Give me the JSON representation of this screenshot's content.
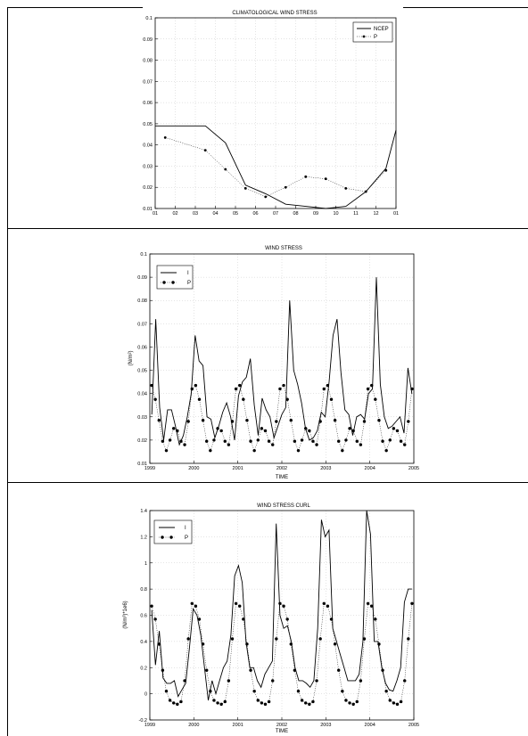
{
  "colors": {
    "line": "#000000",
    "grid": "#c8c8c8",
    "border": "#000000"
  },
  "chart_data": [
    {
      "type": "line",
      "title": "CLIMATOLOGICAL WIND STRESS",
      "xlabel": "",
      "ylabel": "",
      "xticklabels": [
        "01",
        "02",
        "03",
        "04",
        "05",
        "06",
        "07",
        "08",
        "09",
        "10",
        "11",
        "12",
        "01"
      ],
      "yticklabels": [
        "0.01",
        "0.02",
        "0.03",
        "0.04",
        "0.05",
        "0.06",
        "0.07",
        "0.08",
        "0.09",
        "0.1"
      ],
      "xlim": [
        0,
        12
      ],
      "ylim": [
        0.01,
        0.1
      ],
      "grid": true,
      "legend": "top-right",
      "series": [
        {
          "name": "NCEP",
          "style": "solid",
          "x": [
            0,
            1.5,
            2.5,
            3.5,
            4.5,
            5.5,
            6.5,
            7.5,
            8.5,
            9.5,
            10.5,
            11.5,
            12
          ],
          "y": [
            0.049,
            0.049,
            0.049,
            0.041,
            0.021,
            0.017,
            0.012,
            0.011,
            0.01,
            0.011,
            0.018,
            0.029,
            0.047
          ]
        },
        {
          "name": "P",
          "style": "dotted-markers",
          "x": [
            0.5,
            2.5,
            3.5,
            4.5,
            5.5,
            6.5,
            7.5,
            8.5,
            9.5,
            10.5,
            11.5
          ],
          "y": [
            0.0435,
            0.0375,
            0.0285,
            0.0195,
            0.0155,
            0.02,
            0.025,
            0.024,
            0.0195,
            0.018,
            0.028
          ]
        }
      ]
    },
    {
      "type": "line",
      "title": "WIND STRESS",
      "xlabel": "TIME",
      "ylabel": "(N/m²)",
      "xticklabels": [
        "1999",
        "2000",
        "2001",
        "2002",
        "2003",
        "2004",
        "2005"
      ],
      "yticklabels": [
        "0.01",
        "0.02",
        "0.03",
        "0.04",
        "0.05",
        "0.06",
        "0.07",
        "0.08",
        "0.09",
        "0.1"
      ],
      "xlim": [
        1999,
        2005
      ],
      "ylim": [
        0.01,
        0.1
      ],
      "grid": true,
      "legend": "top-left",
      "series": [
        {
          "name": "I",
          "style": "solid",
          "y": [
            0.031,
            0.072,
            0.034,
            0.02,
            0.033,
            0.033,
            0.026,
            0.018,
            0.022,
            0.03,
            0.04,
            0.065,
            0.054,
            0.052,
            0.03,
            0.029,
            0.021,
            0.026,
            0.032,
            0.036,
            0.03,
            0.02,
            0.039,
            0.045,
            0.047,
            0.055,
            0.035,
            0.022,
            0.038,
            0.033,
            0.03,
            0.021,
            0.026,
            0.031,
            0.034,
            0.08,
            0.05,
            0.044,
            0.036,
            0.025,
            0.02,
            0.021,
            0.024,
            0.032,
            0.03,
            0.045,
            0.065,
            0.072,
            0.049,
            0.033,
            0.031,
            0.022,
            0.03,
            0.031,
            0.029,
            0.04,
            0.042,
            0.09,
            0.044,
            0.03,
            0.025,
            0.026,
            0.028,
            0.03,
            0.023,
            0.051,
            0.04
          ]
        },
        {
          "name": "P",
          "style": "dotted-markers",
          "y": [
            0.0435,
            0.0375,
            0.0285,
            0.0195,
            0.0155,
            0.02,
            0.025,
            0.024,
            0.0195,
            0.018,
            0.028,
            0.042,
            0.0435,
            0.0375,
            0.0285,
            0.0195,
            0.0155,
            0.02,
            0.025,
            0.024,
            0.0195,
            0.018,
            0.028,
            0.042,
            0.0435,
            0.0375,
            0.0285,
            0.0195,
            0.0155,
            0.02,
            0.025,
            0.024,
            0.0195,
            0.018,
            0.028,
            0.042,
            0.0435,
            0.0375,
            0.0285,
            0.0195,
            0.0155,
            0.02,
            0.025,
            0.024,
            0.0195,
            0.018,
            0.028,
            0.042,
            0.0435,
            0.0375,
            0.0285,
            0.0195,
            0.0155,
            0.02,
            0.025,
            0.024,
            0.0195,
            0.018,
            0.028,
            0.042,
            0.0435,
            0.0375,
            0.0285,
            0.0195,
            0.0155,
            0.02,
            0.025,
            0.024,
            0.0195,
            0.018,
            0.028,
            0.042
          ]
        }
      ]
    },
    {
      "type": "line",
      "title": "WIND STRESS CURL",
      "xlabel": "TIME",
      "ylabel": "(N/m³)*1e6)",
      "xticklabels": [
        "1999",
        "2000",
        "2001",
        "2002",
        "2003",
        "2004",
        "2005"
      ],
      "yticklabels": [
        "-0.2",
        "0",
        "0.2",
        "0.4",
        "0.6",
        "0.8",
        "1",
        "1.2",
        "1.4"
      ],
      "xlim": [
        1999,
        2005
      ],
      "ylim": [
        -0.2,
        1.4
      ],
      "grid": true,
      "legend": "top-left",
      "series": [
        {
          "name": "I",
          "style": "solid",
          "y": [
            0.64,
            0.22,
            0.48,
            0.12,
            0.08,
            0.08,
            0.1,
            -0.02,
            0.03,
            0.08,
            0.35,
            0.65,
            0.6,
            0.45,
            0.2,
            -0.05,
            0.1,
            0.0,
            0.1,
            0.2,
            0.25,
            0.45,
            0.9,
            0.98,
            0.85,
            0.4,
            0.2,
            0.2,
            0.1,
            0.05,
            0.15,
            0.2,
            0.25,
            1.3,
            0.6,
            0.5,
            0.52,
            0.4,
            0.2,
            0.1,
            0.1,
            0.08,
            0.05,
            0.1,
            0.5,
            1.33,
            1.2,
            1.25,
            0.5,
            0.4,
            0.3,
            0.2,
            0.1,
            0.1,
            0.1,
            0.15,
            0.4,
            1.4,
            1.22,
            0.4,
            0.4,
            0.2,
            0.08,
            0.03,
            0.02,
            0.1,
            0.2,
            0.7,
            0.8,
            0.8
          ]
        },
        {
          "name": "P",
          "style": "dotted-markers",
          "y": [
            0.67,
            0.57,
            0.38,
            0.18,
            0.02,
            -0.05,
            -0.07,
            -0.08,
            -0.06,
            0.1,
            0.42,
            0.69,
            0.67,
            0.57,
            0.38,
            0.18,
            0.02,
            -0.05,
            -0.07,
            -0.08,
            -0.06,
            0.1,
            0.42,
            0.69,
            0.67,
            0.57,
            0.38,
            0.18,
            0.02,
            -0.05,
            -0.07,
            -0.08,
            -0.06,
            0.1,
            0.42,
            0.69,
            0.67,
            0.57,
            0.38,
            0.18,
            0.02,
            -0.05,
            -0.07,
            -0.08,
            -0.06,
            0.1,
            0.42,
            0.69,
            0.67,
            0.57,
            0.38,
            0.18,
            0.02,
            -0.05,
            -0.07,
            -0.08,
            -0.06,
            0.1,
            0.42,
            0.69,
            0.67,
            0.57,
            0.38,
            0.18,
            0.02,
            -0.05,
            -0.07,
            -0.08,
            -0.06,
            0.1,
            0.42,
            0.69
          ]
        }
      ]
    }
  ]
}
